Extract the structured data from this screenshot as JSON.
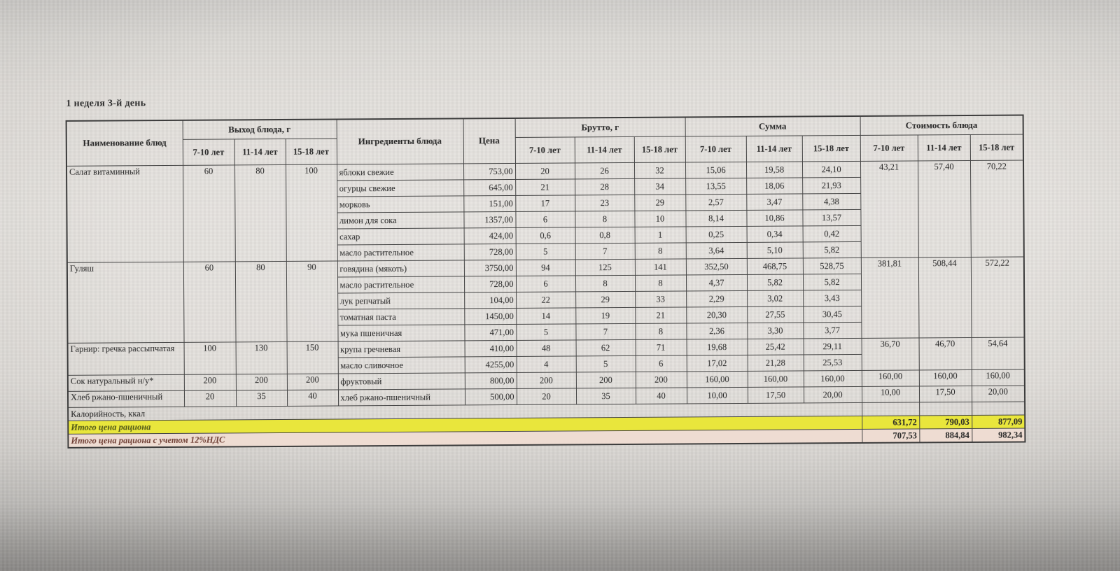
{
  "page": {
    "title": "1 неделя 3-й день"
  },
  "table": {
    "headers": {
      "name": "Наименование блюд",
      "output": "Выход блюда, г",
      "ingredients": "Ингредиенты блюда",
      "price": "Цена",
      "brutto": "Брутто, г",
      "summa": "Сумма",
      "cost": "Стоимость блюда",
      "age_groups": [
        "7-10 лет",
        "11-14 лет",
        "15-18 лет"
      ]
    },
    "groups": [
      {
        "dish": "Салат витаминный",
        "output": [
          "60",
          "80",
          "100"
        ],
        "cost": [
          "43,21",
          "57,40",
          "70,22"
        ],
        "ingredients": [
          {
            "name": "яблоки свежие",
            "price": "753,00",
            "brutto": [
              "20",
              "26",
              "32"
            ],
            "summa": [
              "15,06",
              "19,58",
              "24,10"
            ]
          },
          {
            "name": "огурцы свежие",
            "price": "645,00",
            "brutto": [
              "21",
              "28",
              "34"
            ],
            "summa": [
              "13,55",
              "18,06",
              "21,93"
            ]
          },
          {
            "name": "морковь",
            "price": "151,00",
            "brutto": [
              "17",
              "23",
              "29"
            ],
            "summa": [
              "2,57",
              "3,47",
              "4,38"
            ]
          },
          {
            "name": "лимон для сока",
            "price": "1357,00",
            "brutto": [
              "6",
              "8",
              "10"
            ],
            "summa": [
              "8,14",
              "10,86",
              "13,57"
            ]
          },
          {
            "name": "сахар",
            "price": "424,00",
            "brutto": [
              "0,6",
              "0,8",
              "1"
            ],
            "summa": [
              "0,25",
              "0,34",
              "0,42"
            ]
          },
          {
            "name": "масло растительное",
            "price": "728,00",
            "brutto": [
              "5",
              "7",
              "8"
            ],
            "summa": [
              "3,64",
              "5,10",
              "5,82"
            ]
          }
        ]
      },
      {
        "dish": "Гуляш",
        "output": [
          "60",
          "80",
          "90"
        ],
        "cost": [
          "381,81",
          "508,44",
          "572,22"
        ],
        "ingredients": [
          {
            "name": "говядина (мякоть)",
            "price": "3750,00",
            "brutto": [
              "94",
              "125",
              "141"
            ],
            "summa": [
              "352,50",
              "468,75",
              "528,75"
            ]
          },
          {
            "name": "масло растительное",
            "price": "728,00",
            "brutto": [
              "6",
              "8",
              "8"
            ],
            "summa": [
              "4,37",
              "5,82",
              "5,82"
            ]
          },
          {
            "name": "лук репчатый",
            "price": "104,00",
            "brutto": [
              "22",
              "29",
              "33"
            ],
            "summa": [
              "2,29",
              "3,02",
              "3,43"
            ]
          },
          {
            "name": "томатная паста",
            "price": "1450,00",
            "brutto": [
              "14",
              "19",
              "21"
            ],
            "summa": [
              "20,30",
              "27,55",
              "30,45"
            ]
          },
          {
            "name": "мука пшеничная",
            "price": "471,00",
            "brutto": [
              "5",
              "7",
              "8"
            ],
            "summa": [
              "2,36",
              "3,30",
              "3,77"
            ]
          }
        ]
      },
      {
        "dish": "Гарнир: гречка рассыпчатая",
        "output": [
          "100",
          "130",
          "150"
        ],
        "cost": [
          "36,70",
          "46,70",
          "54,64"
        ],
        "ingredients": [
          {
            "name": "крупа гречневая",
            "price": "410,00",
            "brutto": [
              "48",
              "62",
              "71"
            ],
            "summa": [
              "19,68",
              "25,42",
              "29,11"
            ]
          },
          {
            "name": "масло сливочное",
            "price": "4255,00",
            "brutto": [
              "4",
              "5",
              "6"
            ],
            "summa": [
              "17,02",
              "21,28",
              "25,53"
            ]
          }
        ]
      },
      {
        "dish": "Сок натуральный н/у*",
        "output": [
          "200",
          "200",
          "200"
        ],
        "cost": [
          "160,00",
          "160,00",
          "160,00"
        ],
        "ingredients": [
          {
            "name": "фруктовый",
            "price": "800,00",
            "brutto": [
              "200",
              "200",
              "200"
            ],
            "summa": [
              "160,00",
              "160,00",
              "160,00"
            ]
          }
        ]
      },
      {
        "dish": "Хлеб ржано-пшеничный",
        "output": [
          "20",
          "35",
          "40"
        ],
        "cost": [
          "10,00",
          "17,50",
          "20,00"
        ],
        "ingredients": [
          {
            "name": "хлеб ржано-пшеничный",
            "price": "500,00",
            "brutto": [
              "20",
              "35",
              "40"
            ],
            "summa": [
              "10,00",
              "17,50",
              "20,00"
            ]
          }
        ]
      }
    ],
    "totals": [
      {
        "label": "Калорийность, ккал",
        "style": "plain",
        "values": [
          "",
          "",
          ""
        ]
      },
      {
        "label": "Итого цена рациона",
        "style": "yellow",
        "values": [
          "631,72",
          "790,03",
          "877,09"
        ]
      },
      {
        "label": "Итого цена рациона с учетом 12%НДС",
        "style": "pink",
        "values": [
          "707,53",
          "884,84",
          "982,34"
        ]
      }
    ],
    "colors": {
      "highlight_yellow": "#e9e63c",
      "highlight_pink": "#eedcd2",
      "total_text_green": "#4f5617",
      "total_text_red": "#6f3f35"
    }
  }
}
